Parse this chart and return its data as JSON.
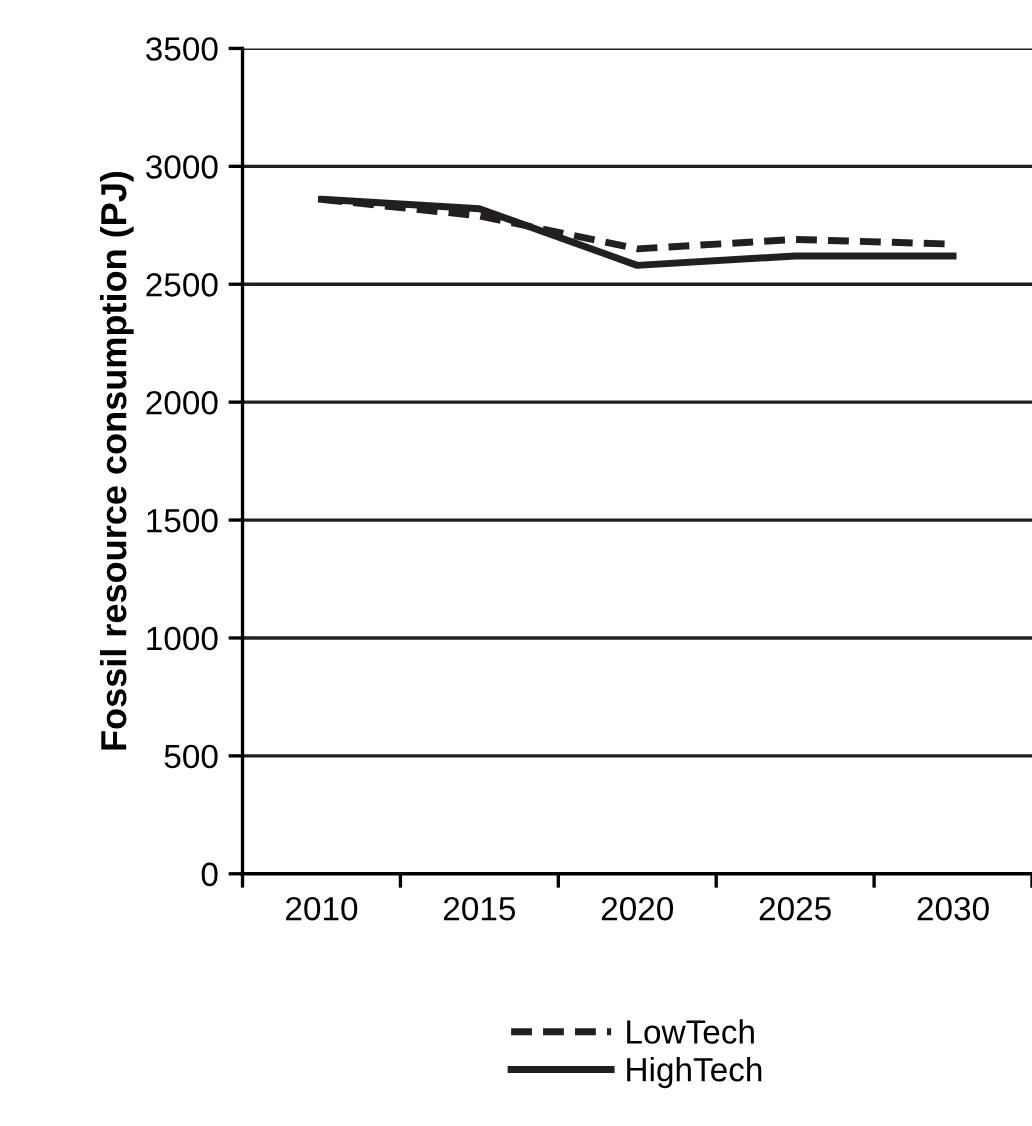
{
  "chart_data": {
    "type": "line",
    "ylabel": "Fossil resource consumption (PJ)",
    "categories": [
      "2010",
      "2015",
      "2020",
      "2025",
      "2030"
    ],
    "series": [
      {
        "name": "LowTech",
        "color": "#231f20",
        "line_style": "dashed",
        "values": [
          2860,
          2790,
          2650,
          2690,
          2670
        ]
      },
      {
        "name": "HighTech",
        "color": "#231f20",
        "line_style": "solid",
        "values": [
          2860,
          2820,
          2580,
          2620,
          2620
        ]
      }
    ],
    "ylim": [
      0,
      3500
    ],
    "yticks": [
      0,
      500,
      1000,
      1500,
      2000,
      2500,
      3000,
      3500
    ],
    "grid": "y",
    "legend": "bottom",
    "marker": "none"
  }
}
